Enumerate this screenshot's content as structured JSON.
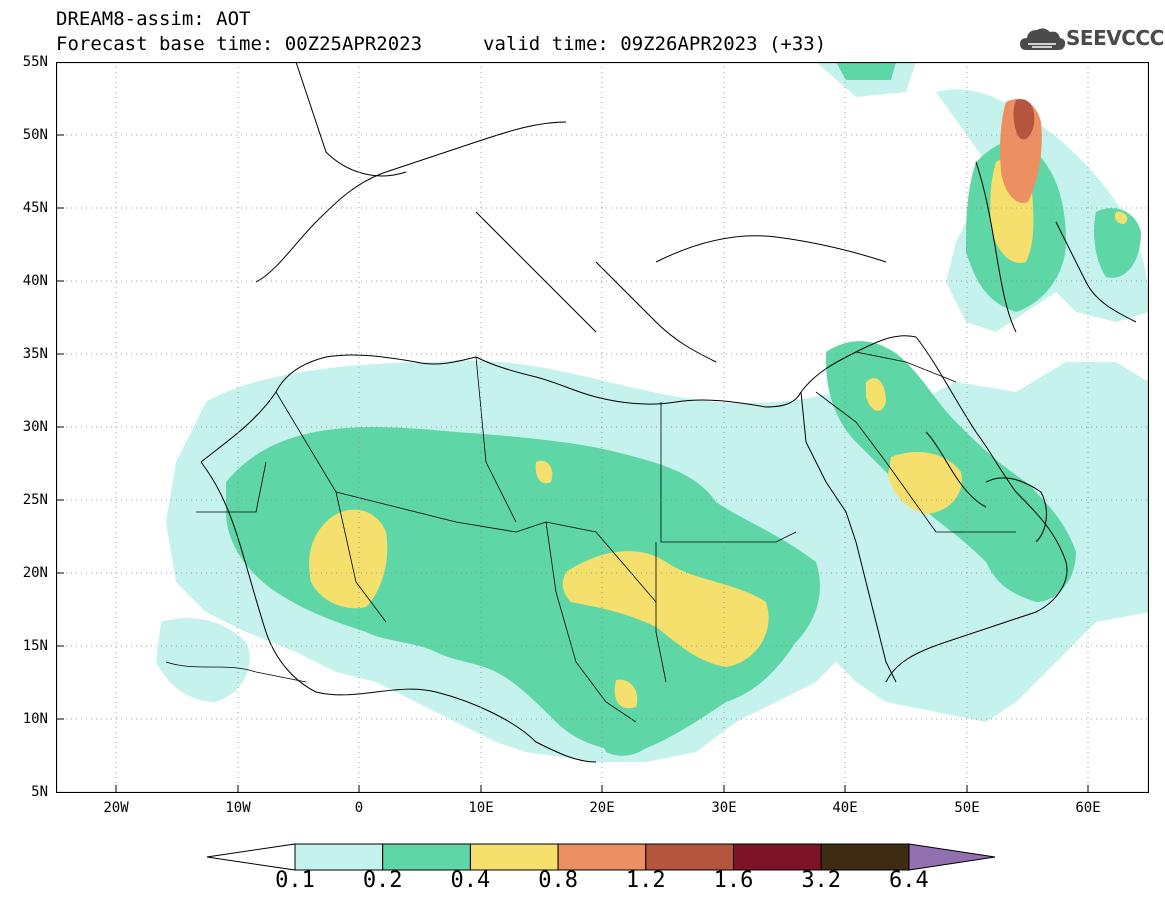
{
  "header": {
    "line1": "DREAM8-assim: AOT",
    "line2": "Forecast base time: 00Z25APR2023",
    "valid": "valid time: 09Z26APR2023 (+33)",
    "logo_text": "SEEVCCC"
  },
  "map": {
    "lat_labels": [
      "55N",
      "50N",
      "45N",
      "40N",
      "35N",
      "30N",
      "25N",
      "20N",
      "15N",
      "10N",
      "5N"
    ],
    "lon_labels": [
      "20W",
      "10W",
      "0",
      "10E",
      "20E",
      "30E",
      "40E",
      "50E",
      "60E"
    ],
    "lon_range": [
      -25,
      65
    ],
    "lat_range": [
      5,
      55
    ]
  },
  "legend": {
    "labels": [
      "0.1",
      "0.2",
      "0.4",
      "0.8",
      "1.2",
      "1.6",
      "3.2",
      "6.4"
    ],
    "colors": [
      "#c5f2ec",
      "#5fd6a6",
      "#f5e06e",
      "#ec9064",
      "#b5553f",
      "#7c1326",
      "#3e2b14",
      "#9270b0"
    ]
  }
}
